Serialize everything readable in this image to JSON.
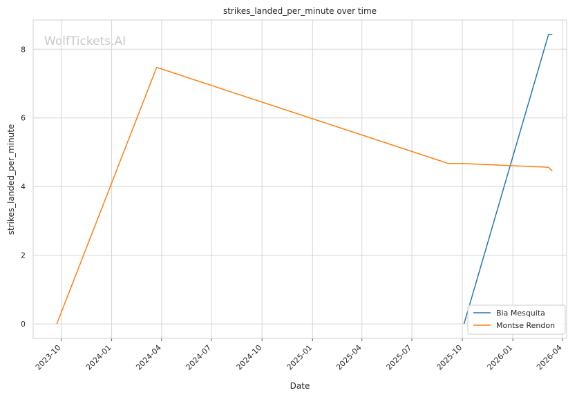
{
  "chart_data": {
    "type": "line",
    "title": "strikes_landed_per_minute over time",
    "xlabel": "Date",
    "ylabel": "strikes_landed_per_minute",
    "watermark": "WolfTickets.AI",
    "x_ticks": [
      "2023-10",
      "2024-01",
      "2024-04",
      "2024-07",
      "2024-10",
      "2025-01",
      "2025-04",
      "2025-07",
      "2025-10",
      "2026-01",
      "2026-04"
    ],
    "y_ticks": [
      0,
      2,
      4,
      6,
      8
    ],
    "xlim": [
      "2023-08-11",
      "2026-04-09"
    ],
    "ylim": [
      -0.42,
      8.85
    ],
    "grid": true,
    "legend_position": "lower-right",
    "series": [
      {
        "name": "Bia Mesquita",
        "color": "#1f77b4",
        "points": [
          {
            "x": "2025-10-04",
            "y": 0
          },
          {
            "x": "2026-03-07",
            "y": 8.43
          },
          {
            "x": "2026-03-14",
            "y": 8.43
          }
        ]
      },
      {
        "name": "Montse Rendon",
        "color": "#ff7f0e",
        "points": [
          {
            "x": "2023-09-23",
            "y": 0
          },
          {
            "x": "2024-03-23",
            "y": 7.47
          },
          {
            "x": "2025-09-06",
            "y": 4.67
          },
          {
            "x": "2025-10-04",
            "y": 4.67
          },
          {
            "x": "2026-03-07",
            "y": 4.56
          },
          {
            "x": "2026-03-14",
            "y": 4.45
          }
        ]
      }
    ]
  }
}
